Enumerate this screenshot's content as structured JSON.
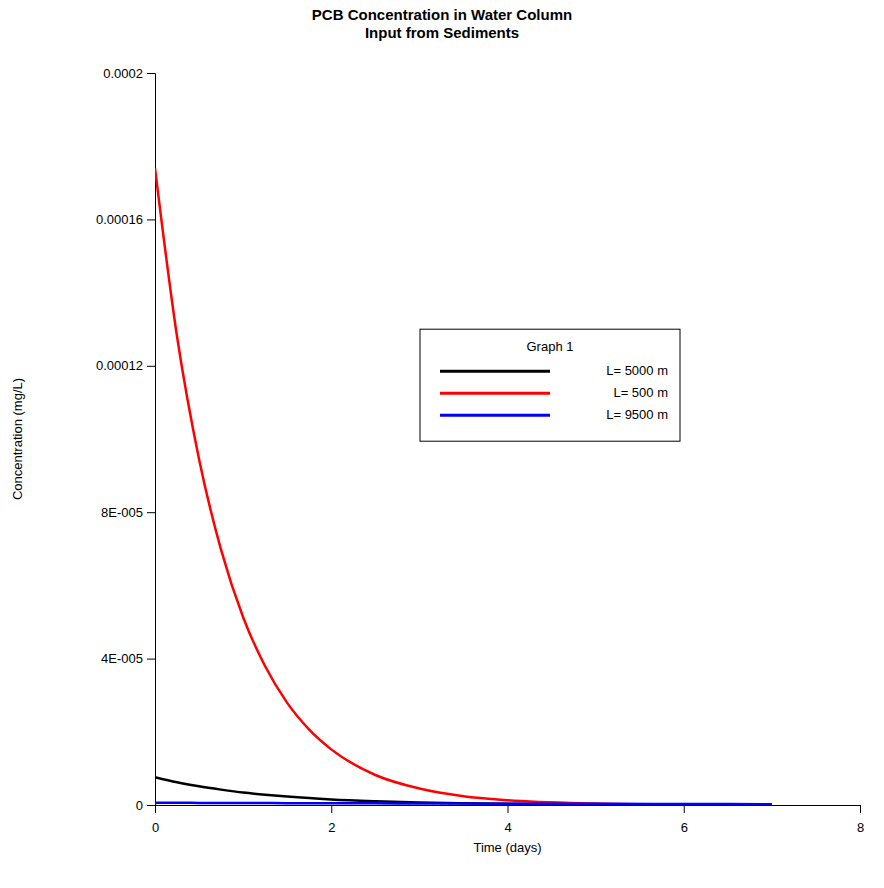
{
  "chart_data": {
    "type": "line",
    "title": "PCB Concentration in Water Column",
    "subtitle": "Input from Sediments",
    "x_label": "Time (days)",
    "y_label": "Concentration (mg/L)",
    "legend_title": "Graph 1",
    "legend": "right",
    "grid": false,
    "x": [
      0,
      0.25,
      0.5,
      0.75,
      1,
      1.25,
      1.5,
      1.75,
      2,
      2.5,
      3,
      3.5,
      4,
      5,
      6,
      7
    ],
    "series": [
      {
        "name": "L= 5000 m",
        "color": "#000000",
        "values": [
          7.6e-06,
          6.2e-06,
          5.1e-06,
          4.2e-06,
          3.4e-06,
          2.8e-06,
          2.3e-06,
          1.9e-06,
          1.5e-06,
          1e-06,
          6.9e-07,
          4.6e-07,
          3.1e-07,
          1.4e-07,
          6e-08,
          3e-08
        ]
      },
      {
        "name": "L= 500 m",
        "color": "#ff0000",
        "values": [
          0.000174,
          0.000128,
          9.45e-05,
          6.97e-05,
          5.13e-05,
          3.79e-05,
          2.79e-05,
          2.06e-05,
          1.52e-05,
          8.2e-06,
          4.5e-06,
          2.4e-06,
          1.3e-06,
          4e-07,
          1e-07,
          0
        ]
      },
      {
        "name": "L= 9500 m",
        "color": "#0000ff",
        "values": [
          6e-07,
          6e-07,
          5.8e-07,
          5.6e-07,
          5.5e-07,
          5.3e-07,
          5.1e-07,
          5e-07,
          4.8e-07,
          4.5e-07,
          4.2e-07,
          3.9e-07,
          3.6e-07,
          3.1e-07,
          2.7e-07,
          2.3e-07
        ]
      }
    ],
    "xlim": [
      0,
      8
    ],
    "xticks": [
      0,
      2,
      4,
      6,
      8
    ],
    "ylim": [
      0,
      0.0002
    ],
    "yticks": [
      0,
      {
        "value": 4e-05,
        "label": "4E-005"
      },
      {
        "value": 8e-05,
        "label": "8E-005"
      },
      0.00012,
      0.00016,
      0.0002
    ]
  }
}
